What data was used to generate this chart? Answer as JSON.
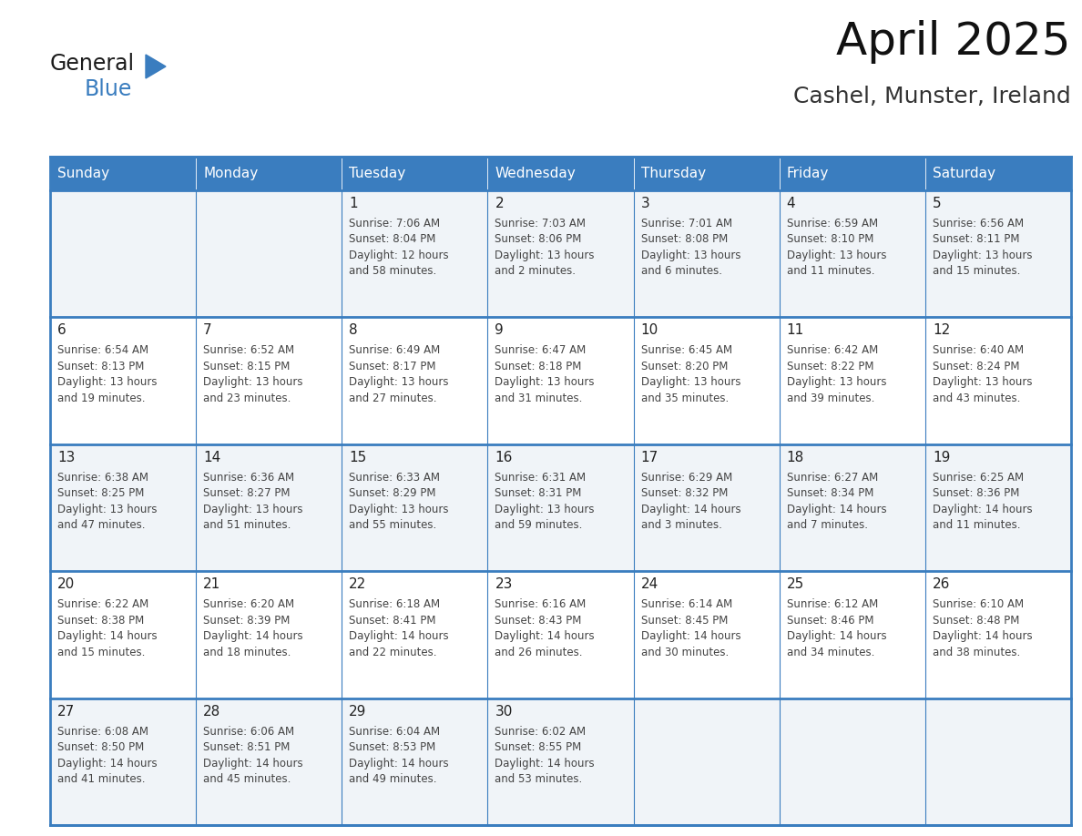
{
  "title": "April 2025",
  "subtitle": "Cashel, Munster, Ireland",
  "header_color": "#3a7dbf",
  "header_text_color": "#ffffff",
  "cell_bg_even": "#f0f4f8",
  "cell_bg_odd": "#ffffff",
  "border_color": "#3a7dbf",
  "text_color": "#333333",
  "day_number_color": "#222222",
  "day_headers": [
    "Sunday",
    "Monday",
    "Tuesday",
    "Wednesday",
    "Thursday",
    "Friday",
    "Saturday"
  ],
  "weeks": [
    [
      {
        "day": "",
        "info": ""
      },
      {
        "day": "",
        "info": ""
      },
      {
        "day": "1",
        "info": "Sunrise: 7:06 AM\nSunset: 8:04 PM\nDaylight: 12 hours\nand 58 minutes."
      },
      {
        "day": "2",
        "info": "Sunrise: 7:03 AM\nSunset: 8:06 PM\nDaylight: 13 hours\nand 2 minutes."
      },
      {
        "day": "3",
        "info": "Sunrise: 7:01 AM\nSunset: 8:08 PM\nDaylight: 13 hours\nand 6 minutes."
      },
      {
        "day": "4",
        "info": "Sunrise: 6:59 AM\nSunset: 8:10 PM\nDaylight: 13 hours\nand 11 minutes."
      },
      {
        "day": "5",
        "info": "Sunrise: 6:56 AM\nSunset: 8:11 PM\nDaylight: 13 hours\nand 15 minutes."
      }
    ],
    [
      {
        "day": "6",
        "info": "Sunrise: 6:54 AM\nSunset: 8:13 PM\nDaylight: 13 hours\nand 19 minutes."
      },
      {
        "day": "7",
        "info": "Sunrise: 6:52 AM\nSunset: 8:15 PM\nDaylight: 13 hours\nand 23 minutes."
      },
      {
        "day": "8",
        "info": "Sunrise: 6:49 AM\nSunset: 8:17 PM\nDaylight: 13 hours\nand 27 minutes."
      },
      {
        "day": "9",
        "info": "Sunrise: 6:47 AM\nSunset: 8:18 PM\nDaylight: 13 hours\nand 31 minutes."
      },
      {
        "day": "10",
        "info": "Sunrise: 6:45 AM\nSunset: 8:20 PM\nDaylight: 13 hours\nand 35 minutes."
      },
      {
        "day": "11",
        "info": "Sunrise: 6:42 AM\nSunset: 8:22 PM\nDaylight: 13 hours\nand 39 minutes."
      },
      {
        "day": "12",
        "info": "Sunrise: 6:40 AM\nSunset: 8:24 PM\nDaylight: 13 hours\nand 43 minutes."
      }
    ],
    [
      {
        "day": "13",
        "info": "Sunrise: 6:38 AM\nSunset: 8:25 PM\nDaylight: 13 hours\nand 47 minutes."
      },
      {
        "day": "14",
        "info": "Sunrise: 6:36 AM\nSunset: 8:27 PM\nDaylight: 13 hours\nand 51 minutes."
      },
      {
        "day": "15",
        "info": "Sunrise: 6:33 AM\nSunset: 8:29 PM\nDaylight: 13 hours\nand 55 minutes."
      },
      {
        "day": "16",
        "info": "Sunrise: 6:31 AM\nSunset: 8:31 PM\nDaylight: 13 hours\nand 59 minutes."
      },
      {
        "day": "17",
        "info": "Sunrise: 6:29 AM\nSunset: 8:32 PM\nDaylight: 14 hours\nand 3 minutes."
      },
      {
        "day": "18",
        "info": "Sunrise: 6:27 AM\nSunset: 8:34 PM\nDaylight: 14 hours\nand 7 minutes."
      },
      {
        "day": "19",
        "info": "Sunrise: 6:25 AM\nSunset: 8:36 PM\nDaylight: 14 hours\nand 11 minutes."
      }
    ],
    [
      {
        "day": "20",
        "info": "Sunrise: 6:22 AM\nSunset: 8:38 PM\nDaylight: 14 hours\nand 15 minutes."
      },
      {
        "day": "21",
        "info": "Sunrise: 6:20 AM\nSunset: 8:39 PM\nDaylight: 14 hours\nand 18 minutes."
      },
      {
        "day": "22",
        "info": "Sunrise: 6:18 AM\nSunset: 8:41 PM\nDaylight: 14 hours\nand 22 minutes."
      },
      {
        "day": "23",
        "info": "Sunrise: 6:16 AM\nSunset: 8:43 PM\nDaylight: 14 hours\nand 26 minutes."
      },
      {
        "day": "24",
        "info": "Sunrise: 6:14 AM\nSunset: 8:45 PM\nDaylight: 14 hours\nand 30 minutes."
      },
      {
        "day": "25",
        "info": "Sunrise: 6:12 AM\nSunset: 8:46 PM\nDaylight: 14 hours\nand 34 minutes."
      },
      {
        "day": "26",
        "info": "Sunrise: 6:10 AM\nSunset: 8:48 PM\nDaylight: 14 hours\nand 38 minutes."
      }
    ],
    [
      {
        "day": "27",
        "info": "Sunrise: 6:08 AM\nSunset: 8:50 PM\nDaylight: 14 hours\nand 41 minutes."
      },
      {
        "day": "28",
        "info": "Sunrise: 6:06 AM\nSunset: 8:51 PM\nDaylight: 14 hours\nand 45 minutes."
      },
      {
        "day": "29",
        "info": "Sunrise: 6:04 AM\nSunset: 8:53 PM\nDaylight: 14 hours\nand 49 minutes."
      },
      {
        "day": "30",
        "info": "Sunrise: 6:02 AM\nSunset: 8:55 PM\nDaylight: 14 hours\nand 53 minutes."
      },
      {
        "day": "",
        "info": ""
      },
      {
        "day": "",
        "info": ""
      },
      {
        "day": "",
        "info": ""
      }
    ]
  ],
  "logo_text_general": "General",
  "logo_text_blue": "Blue",
  "logo_color_general": "#1a1a1a",
  "logo_color_blue": "#3a7dbf",
  "logo_triangle_color": "#3a7dbf",
  "title_fontsize": 36,
  "subtitle_fontsize": 18,
  "header_fontsize": 11,
  "day_num_fontsize": 11,
  "info_fontsize": 8.5
}
